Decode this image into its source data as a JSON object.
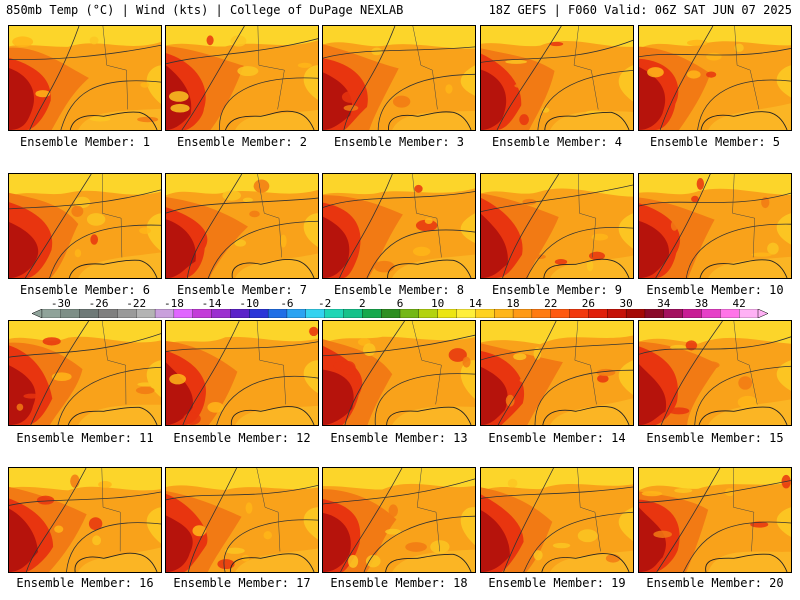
{
  "header": {
    "left": "850mb Temp (°C) | Wind (kts) | College of DuPage NEXLAB",
    "right": "18Z GEFS | F060 Valid: 06Z SAT JUN 07 2025"
  },
  "members": [
    {
      "label": "Ensemble Member: 1"
    },
    {
      "label": "Ensemble Member: 2"
    },
    {
      "label": "Ensemble Member: 3"
    },
    {
      "label": "Ensemble Member: 4"
    },
    {
      "label": "Ensemble Member: 5"
    },
    {
      "label": "Ensemble Member: 6"
    },
    {
      "label": "Ensemble Member: 7"
    },
    {
      "label": "Ensemble Member: 8"
    },
    {
      "label": "Ensemble Member: 9"
    },
    {
      "label": "Ensemble Member: 10"
    },
    {
      "label": "Ensemble Member: 11"
    },
    {
      "label": "Ensemble Member: 12"
    },
    {
      "label": "Ensemble Member: 13"
    },
    {
      "label": "Ensemble Member: 14"
    },
    {
      "label": "Ensemble Member: 15"
    },
    {
      "label": "Ensemble Member: 16"
    },
    {
      "label": "Ensemble Member: 17"
    },
    {
      "label": "Ensemble Member: 18"
    },
    {
      "label": "Ensemble Member: 19"
    },
    {
      "label": "Ensemble Member: 20"
    }
  ],
  "colorbar": {
    "ticks": [
      "-30",
      "-26",
      "-22",
      "-18",
      "-14",
      "-10",
      "-6",
      "-2",
      "2",
      "6",
      "10",
      "14",
      "18",
      "22",
      "26",
      "30",
      "34",
      "38",
      "42"
    ],
    "colors": [
      "#8fa39a",
      "#7d8f87",
      "#6e7a78",
      "#808080",
      "#9a9a9a",
      "#b4b4b4",
      "#c9a0dc",
      "#e066ff",
      "#c33bd9",
      "#9b30d0",
      "#5b22c9",
      "#2a35d8",
      "#1f6ee6",
      "#2aa3f2",
      "#34d3f0",
      "#1fd6b5",
      "#16c28a",
      "#17a94d",
      "#2e8f22",
      "#74b816",
      "#b3d30f",
      "#ece512",
      "#ffef3a",
      "#ffd21f",
      "#ffb619",
      "#ff9a15",
      "#ff7b12",
      "#ff5a10",
      "#f2390e",
      "#e0200b",
      "#c51208",
      "#a50a06",
      "#8a0a2a",
      "#a31060",
      "#c81c95",
      "#e640c8",
      "#ff74e8",
      "#ffb1f5"
    ]
  }
}
